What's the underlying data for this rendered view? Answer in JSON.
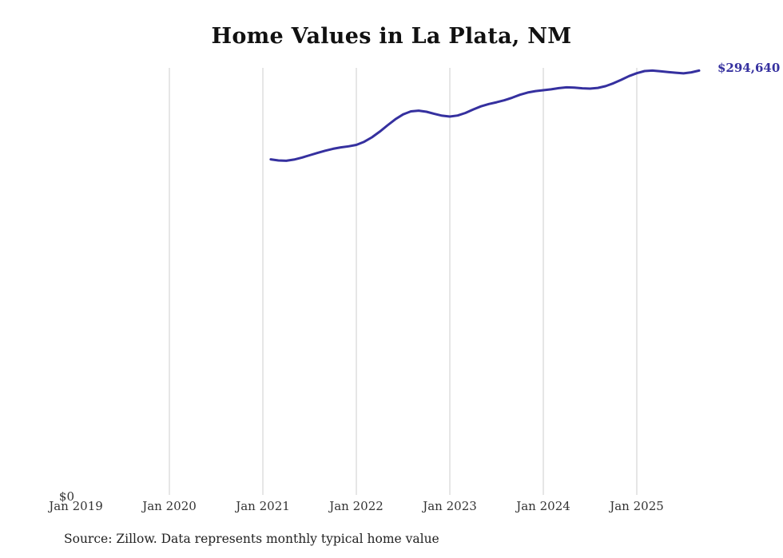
{
  "chart_data": {
    "type": "line",
    "title": "Home Values in La Plata, NM",
    "end_label": "$294,640",
    "end_value": 294640,
    "source_note": "Source: Zillow. Data represents monthly typical home value",
    "line_color": "#35309f",
    "grid_color": "#cccccc",
    "x_ticks": [
      "Jan 2019",
      "Jan 2020",
      "Jan 2021",
      "Jan 2022",
      "Jan 2023",
      "Jan 2024",
      "Jan 2025"
    ],
    "y_ticks": [
      "$0"
    ],
    "ylim": [
      0,
      296500
    ],
    "x_range_months": [
      "2019-01",
      "2025-09"
    ],
    "x_months": [
      "2021-02",
      "2021-03",
      "2021-04",
      "2021-05",
      "2021-06",
      "2021-07",
      "2021-08",
      "2021-09",
      "2021-10",
      "2021-11",
      "2021-12",
      "2022-01",
      "2022-02",
      "2022-03",
      "2022-04",
      "2022-05",
      "2022-06",
      "2022-07",
      "2022-08",
      "2022-09",
      "2022-10",
      "2022-11",
      "2022-12",
      "2023-01",
      "2023-02",
      "2023-03",
      "2023-04",
      "2023-05",
      "2023-06",
      "2023-07",
      "2023-08",
      "2023-09",
      "2023-10",
      "2023-11",
      "2023-12",
      "2024-01",
      "2024-02",
      "2024-03",
      "2024-04",
      "2024-05",
      "2024-06",
      "2024-07",
      "2024-08",
      "2024-09",
      "2024-10",
      "2024-11",
      "2024-12",
      "2025-01",
      "2025-02",
      "2025-03",
      "2025-04",
      "2025-05",
      "2025-06",
      "2025-07",
      "2025-08",
      "2025-09"
    ],
    "series": [
      {
        "name": "Monthly typical home value",
        "values": [
          233000,
          232200,
          232000,
          232800,
          234200,
          235800,
          237400,
          239000,
          240300,
          241300,
          242000,
          243000,
          245200,
          248300,
          252200,
          256600,
          260800,
          264200,
          266300,
          266800,
          266000,
          264600,
          263300,
          262700,
          263400,
          265200,
          267600,
          269800,
          271400,
          272600,
          274000,
          275800,
          277800,
          279400,
          280400,
          281000,
          281600,
          282400,
          283000,
          282800,
          282300,
          282100,
          282600,
          283800,
          285800,
          288200,
          290800,
          292800,
          294300,
          294600,
          294100,
          293600,
          293100,
          292700,
          293400,
          294640
        ]
      }
    ]
  }
}
